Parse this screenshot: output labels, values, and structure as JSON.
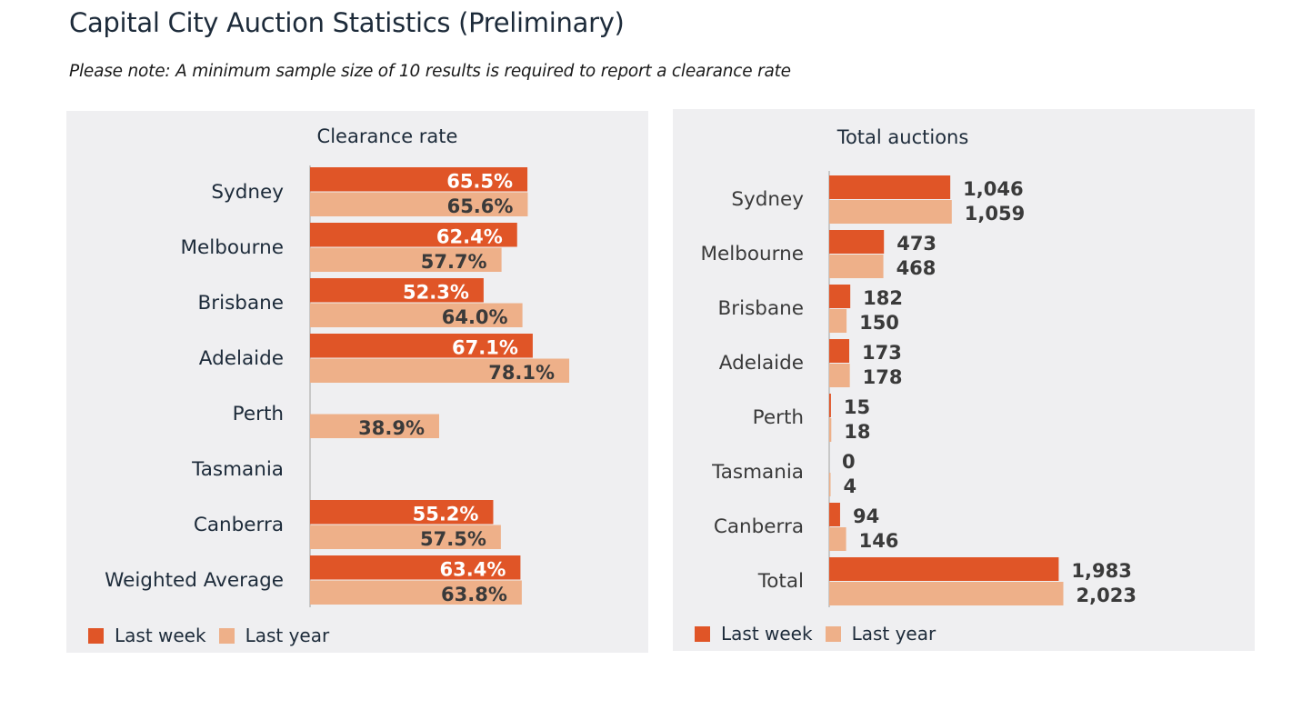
{
  "page": {
    "title": "Capital City Auction Statistics (Preliminary)",
    "note": "Please note: A minimum sample size of 10 results is required to report a clearance rate"
  },
  "colors": {
    "last_week": "#e05527",
    "last_year": "#eeb089",
    "panel_bg": "#efeff1",
    "axis": "#c8c8c8",
    "label_dark": "#3a3a3a",
    "label_light": "#ffffff"
  },
  "legend": {
    "last_week": "Last week",
    "last_year": "Last year"
  },
  "chart_data": [
    {
      "type": "bar",
      "orientation": "horizontal",
      "title": "Clearance rate",
      "categories": [
        "Sydney",
        "Melbourne",
        "Brisbane",
        "Adelaide",
        "Perth",
        "Tasmania",
        "Canberra",
        "Weighted Average"
      ],
      "series": [
        {
          "name": "Last week",
          "values": [
            65.5,
            62.4,
            52.3,
            67.1,
            null,
            null,
            55.2,
            63.4
          ],
          "labels": [
            "65.5%",
            "62.4%",
            "52.3%",
            "67.1%",
            "",
            "",
            "55.2%",
            "63.4%"
          ]
        },
        {
          "name": "Last year",
          "values": [
            65.6,
            57.7,
            64.0,
            78.1,
            38.9,
            null,
            57.5,
            63.8
          ],
          "labels": [
            "65.6%",
            "57.7%",
            "64.0%",
            "78.1%",
            "38.9%",
            "",
            "57.5%",
            "63.8%"
          ]
        }
      ],
      "xlim": [
        0,
        100
      ],
      "grid": false,
      "legend_position": "bottom-left"
    },
    {
      "type": "bar",
      "orientation": "horizontal",
      "title": "Total auctions",
      "categories": [
        "Sydney",
        "Melbourne",
        "Brisbane",
        "Adelaide",
        "Perth",
        "Tasmania",
        "Canberra",
        "Total"
      ],
      "series": [
        {
          "name": "Last week",
          "values": [
            1046,
            473,
            182,
            173,
            15,
            0,
            94,
            1983
          ],
          "labels": [
            "1,046",
            "473",
            "182",
            "173",
            "15",
            "0",
            "94",
            "1,983"
          ]
        },
        {
          "name": "Last year",
          "values": [
            1059,
            468,
            150,
            178,
            18,
            4,
            146,
            2023
          ],
          "labels": [
            "1,059",
            "468",
            "150",
            "178",
            "18",
            "4",
            "146",
            "2,023"
          ]
        }
      ],
      "xlim": [
        0,
        2500
      ],
      "grid": false,
      "legend_position": "bottom-left"
    }
  ]
}
